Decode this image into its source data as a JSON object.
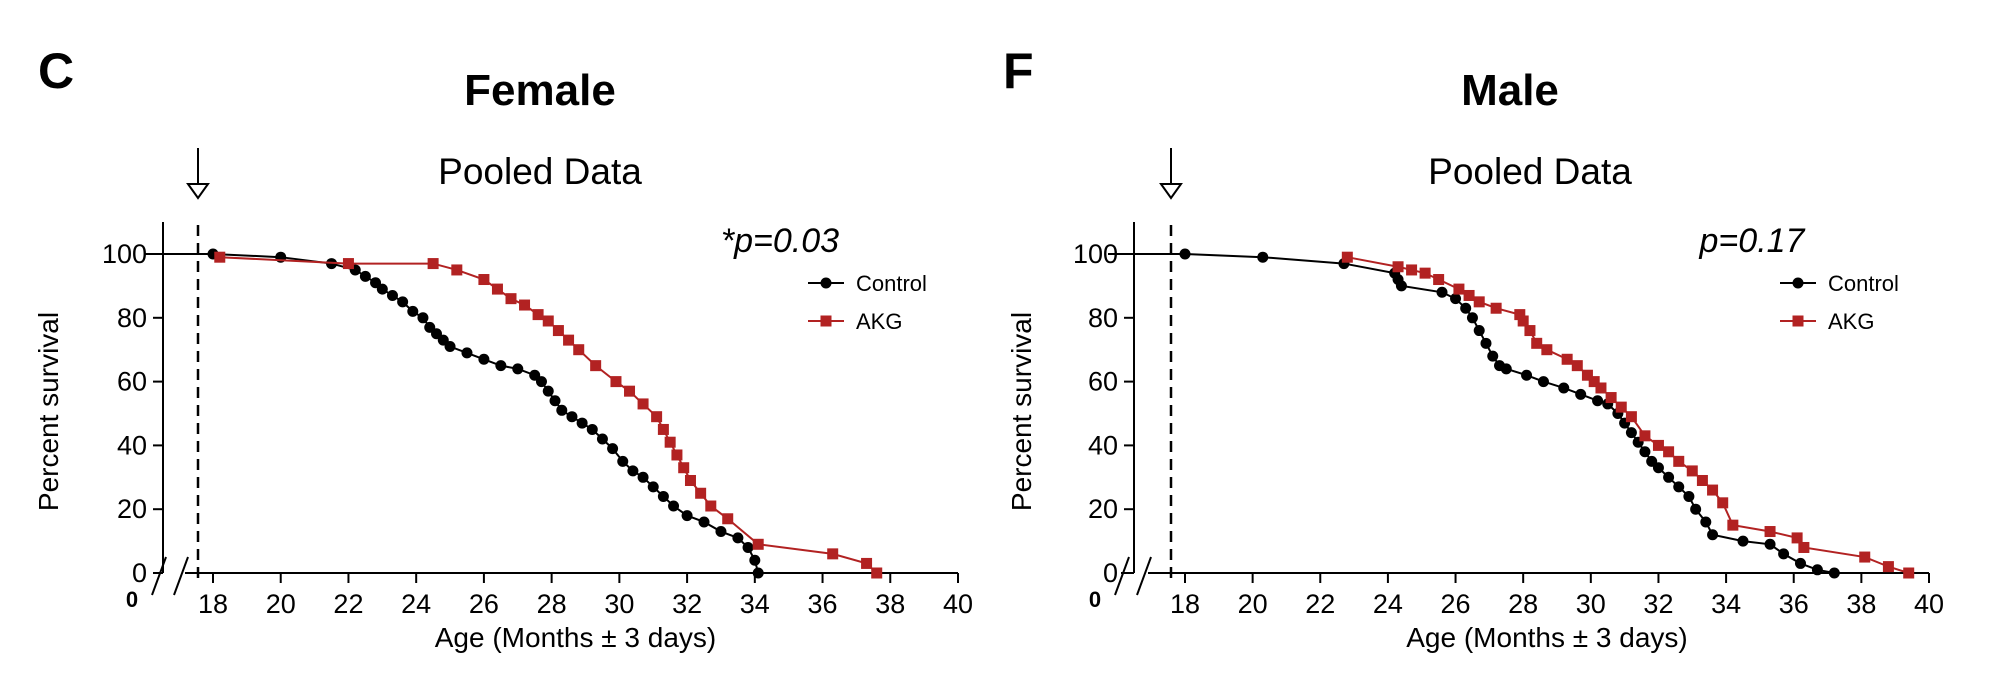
{
  "chart_data": [
    {
      "panel": "C",
      "type": "line",
      "title": "Female",
      "subtitle": "Pooled Data",
      "annotation": "*p=0.03",
      "xlabel": "Age (Months ± 3 days)",
      "ylabel": "Percent survival",
      "xlim": [
        18,
        40
      ],
      "ylim": [
        0,
        100
      ],
      "x_ticks": [
        "18",
        "20",
        "22",
        "24",
        "26",
        "28",
        "30",
        "32",
        "34",
        "36",
        "38",
        "40"
      ],
      "y_ticks": [
        "0",
        "20",
        "40",
        "60",
        "80",
        "100"
      ],
      "x_zero_label": "0",
      "treatment_start_marker": 18,
      "legend_position": "top-right",
      "series": [
        {
          "name": "Control",
          "color": "#000000",
          "marker": "circle",
          "x": [
            15.5,
            18,
            20,
            21.5,
            22.2,
            22.5,
            22.8,
            23.0,
            23.3,
            23.6,
            23.9,
            24.2,
            24.4,
            24.6,
            24.8,
            25.0,
            25.5,
            26.0,
            26.5,
            27.0,
            27.5,
            27.7,
            27.9,
            28.1,
            28.3,
            28.6,
            28.9,
            29.2,
            29.5,
            29.8,
            30.1,
            30.4,
            30.7,
            31.0,
            31.3,
            31.6,
            32.0,
            32.5,
            33.0,
            33.5,
            33.8,
            34.0,
            34.1
          ],
          "y": [
            100,
            100,
            99,
            97,
            95,
            93,
            91,
            89,
            87,
            85,
            82,
            80,
            77,
            75,
            73,
            71,
            69,
            67,
            65,
            64,
            62,
            60,
            57,
            54,
            51,
            49,
            47,
            45,
            42,
            39,
            35,
            32,
            30,
            27,
            24,
            21,
            18,
            16,
            13,
            11,
            8,
            4,
            0
          ]
        },
        {
          "name": "AKG",
          "color": "#b22222",
          "marker": "square",
          "x": [
            18.2,
            22.0,
            24.5,
            25.2,
            26.0,
            26.4,
            26.8,
            27.2,
            27.6,
            27.9,
            28.2,
            28.5,
            28.8,
            29.3,
            29.9,
            30.3,
            30.7,
            31.1,
            31.3,
            31.5,
            31.7,
            31.9,
            32.1,
            32.4,
            32.7,
            33.2,
            34.1,
            36.3,
            37.3,
            37.6
          ],
          "y": [
            99,
            97,
            97,
            95,
            92,
            89,
            86,
            84,
            81,
            79,
            76,
            73,
            70,
            65,
            60,
            57,
            53,
            49,
            45,
            41,
            37,
            33,
            29,
            25,
            21,
            17,
            9,
            6,
            3,
            0
          ]
        }
      ]
    },
    {
      "panel": "F",
      "type": "line",
      "title": "Male",
      "subtitle": "Pooled Data",
      "annotation": "p=0.17",
      "xlabel": "Age (Months ± 3 days)",
      "ylabel": "Percent survival",
      "xlim": [
        18,
        40
      ],
      "ylim": [
        0,
        100
      ],
      "x_ticks": [
        "18",
        "20",
        "22",
        "24",
        "26",
        "28",
        "30",
        "32",
        "34",
        "36",
        "38",
        "40"
      ],
      "y_ticks": [
        "0",
        "20",
        "40",
        "60",
        "80",
        "100"
      ],
      "x_zero_label": "0",
      "treatment_start_marker": 18,
      "legend_position": "top-right",
      "series": [
        {
          "name": "Control",
          "color": "#000000",
          "marker": "circle",
          "x": [
            15.5,
            18,
            20.3,
            22.7,
            24.2,
            24.3,
            24.4,
            25.6,
            26.0,
            26.3,
            26.5,
            26.7,
            26.9,
            27.1,
            27.3,
            27.5,
            28.1,
            28.6,
            29.2,
            29.7,
            30.2,
            30.5,
            30.8,
            31.0,
            31.2,
            31.4,
            31.6,
            31.8,
            32.0,
            32.3,
            32.6,
            32.9,
            33.1,
            33.4,
            33.6,
            34.5,
            35.3,
            35.7,
            36.2,
            36.7,
            37.2
          ],
          "y": [
            100,
            100,
            99,
            97,
            94,
            92,
            90,
            88,
            86,
            83,
            80,
            76,
            72,
            68,
            65,
            64,
            62,
            60,
            58,
            56,
            54,
            53,
            50,
            47,
            44,
            41,
            38,
            35,
            33,
            30,
            27,
            24,
            20,
            16,
            12,
            10,
            9,
            6,
            3,
            1,
            0
          ]
        },
        {
          "name": "AKG",
          "color": "#b22222",
          "marker": "square",
          "x": [
            22.8,
            24.3,
            24.7,
            25.1,
            25.5,
            26.1,
            26.4,
            26.7,
            27.2,
            27.9,
            28.0,
            28.2,
            28.4,
            28.7,
            29.3,
            29.6,
            29.9,
            30.1,
            30.3,
            30.6,
            30.9,
            31.2,
            31.6,
            32.0,
            32.3,
            32.6,
            33.0,
            33.3,
            33.6,
            33.9,
            34.2,
            35.3,
            36.1,
            36.3,
            38.1,
            38.8,
            39.4
          ],
          "y": [
            99,
            96,
            95,
            94,
            92,
            89,
            87,
            85,
            83,
            81,
            79,
            76,
            72,
            70,
            67,
            65,
            62,
            60,
            58,
            55,
            52,
            49,
            43,
            40,
            38,
            35,
            32,
            29,
            26,
            22,
            15,
            13,
            11,
            8,
            5,
            2,
            0
          ]
        }
      ]
    }
  ]
}
